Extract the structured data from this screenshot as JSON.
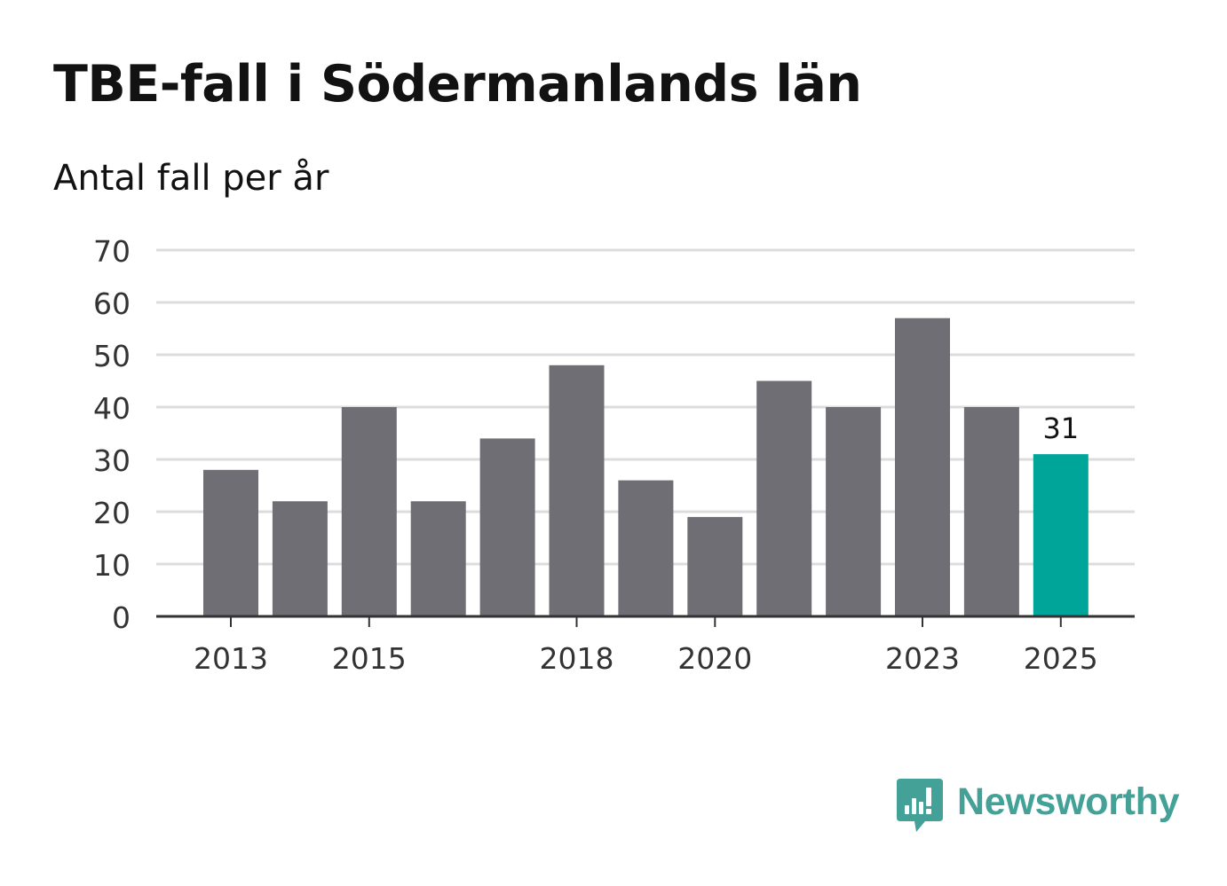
{
  "header": {
    "title": "TBE-fall i Södermanlands län",
    "subtitle": "Antal fall per år"
  },
  "chart_data": {
    "type": "bar",
    "title": "TBE-fall i Södermanlands län",
    "subtitle": "Antal fall per år",
    "xlabel": "",
    "ylabel": "",
    "categories": [
      "2013",
      "2014",
      "2015",
      "2016",
      "2017",
      "2018",
      "2019",
      "2020",
      "2021",
      "2022",
      "2023",
      "2024",
      "2025"
    ],
    "values": [
      28,
      22,
      40,
      22,
      34,
      48,
      26,
      19,
      45,
      40,
      57,
      40,
      31
    ],
    "ylim": [
      0,
      70
    ],
    "yticks": [
      0,
      10,
      20,
      30,
      40,
      50,
      60,
      70
    ],
    "xtick_labels": [
      "2013",
      "2015",
      "2018",
      "2020",
      "2023",
      "2025"
    ],
    "grid": true,
    "highlight": {
      "category": "2025",
      "label": "31"
    },
    "colors": {
      "bar": "#6f6e74",
      "highlight": "#00a59a",
      "grid": "#dcdcdc",
      "axis": "#333333"
    }
  },
  "brand": {
    "name": "Newsworthy",
    "icon": "newsworthy-logo-icon",
    "color": "#43a197"
  }
}
